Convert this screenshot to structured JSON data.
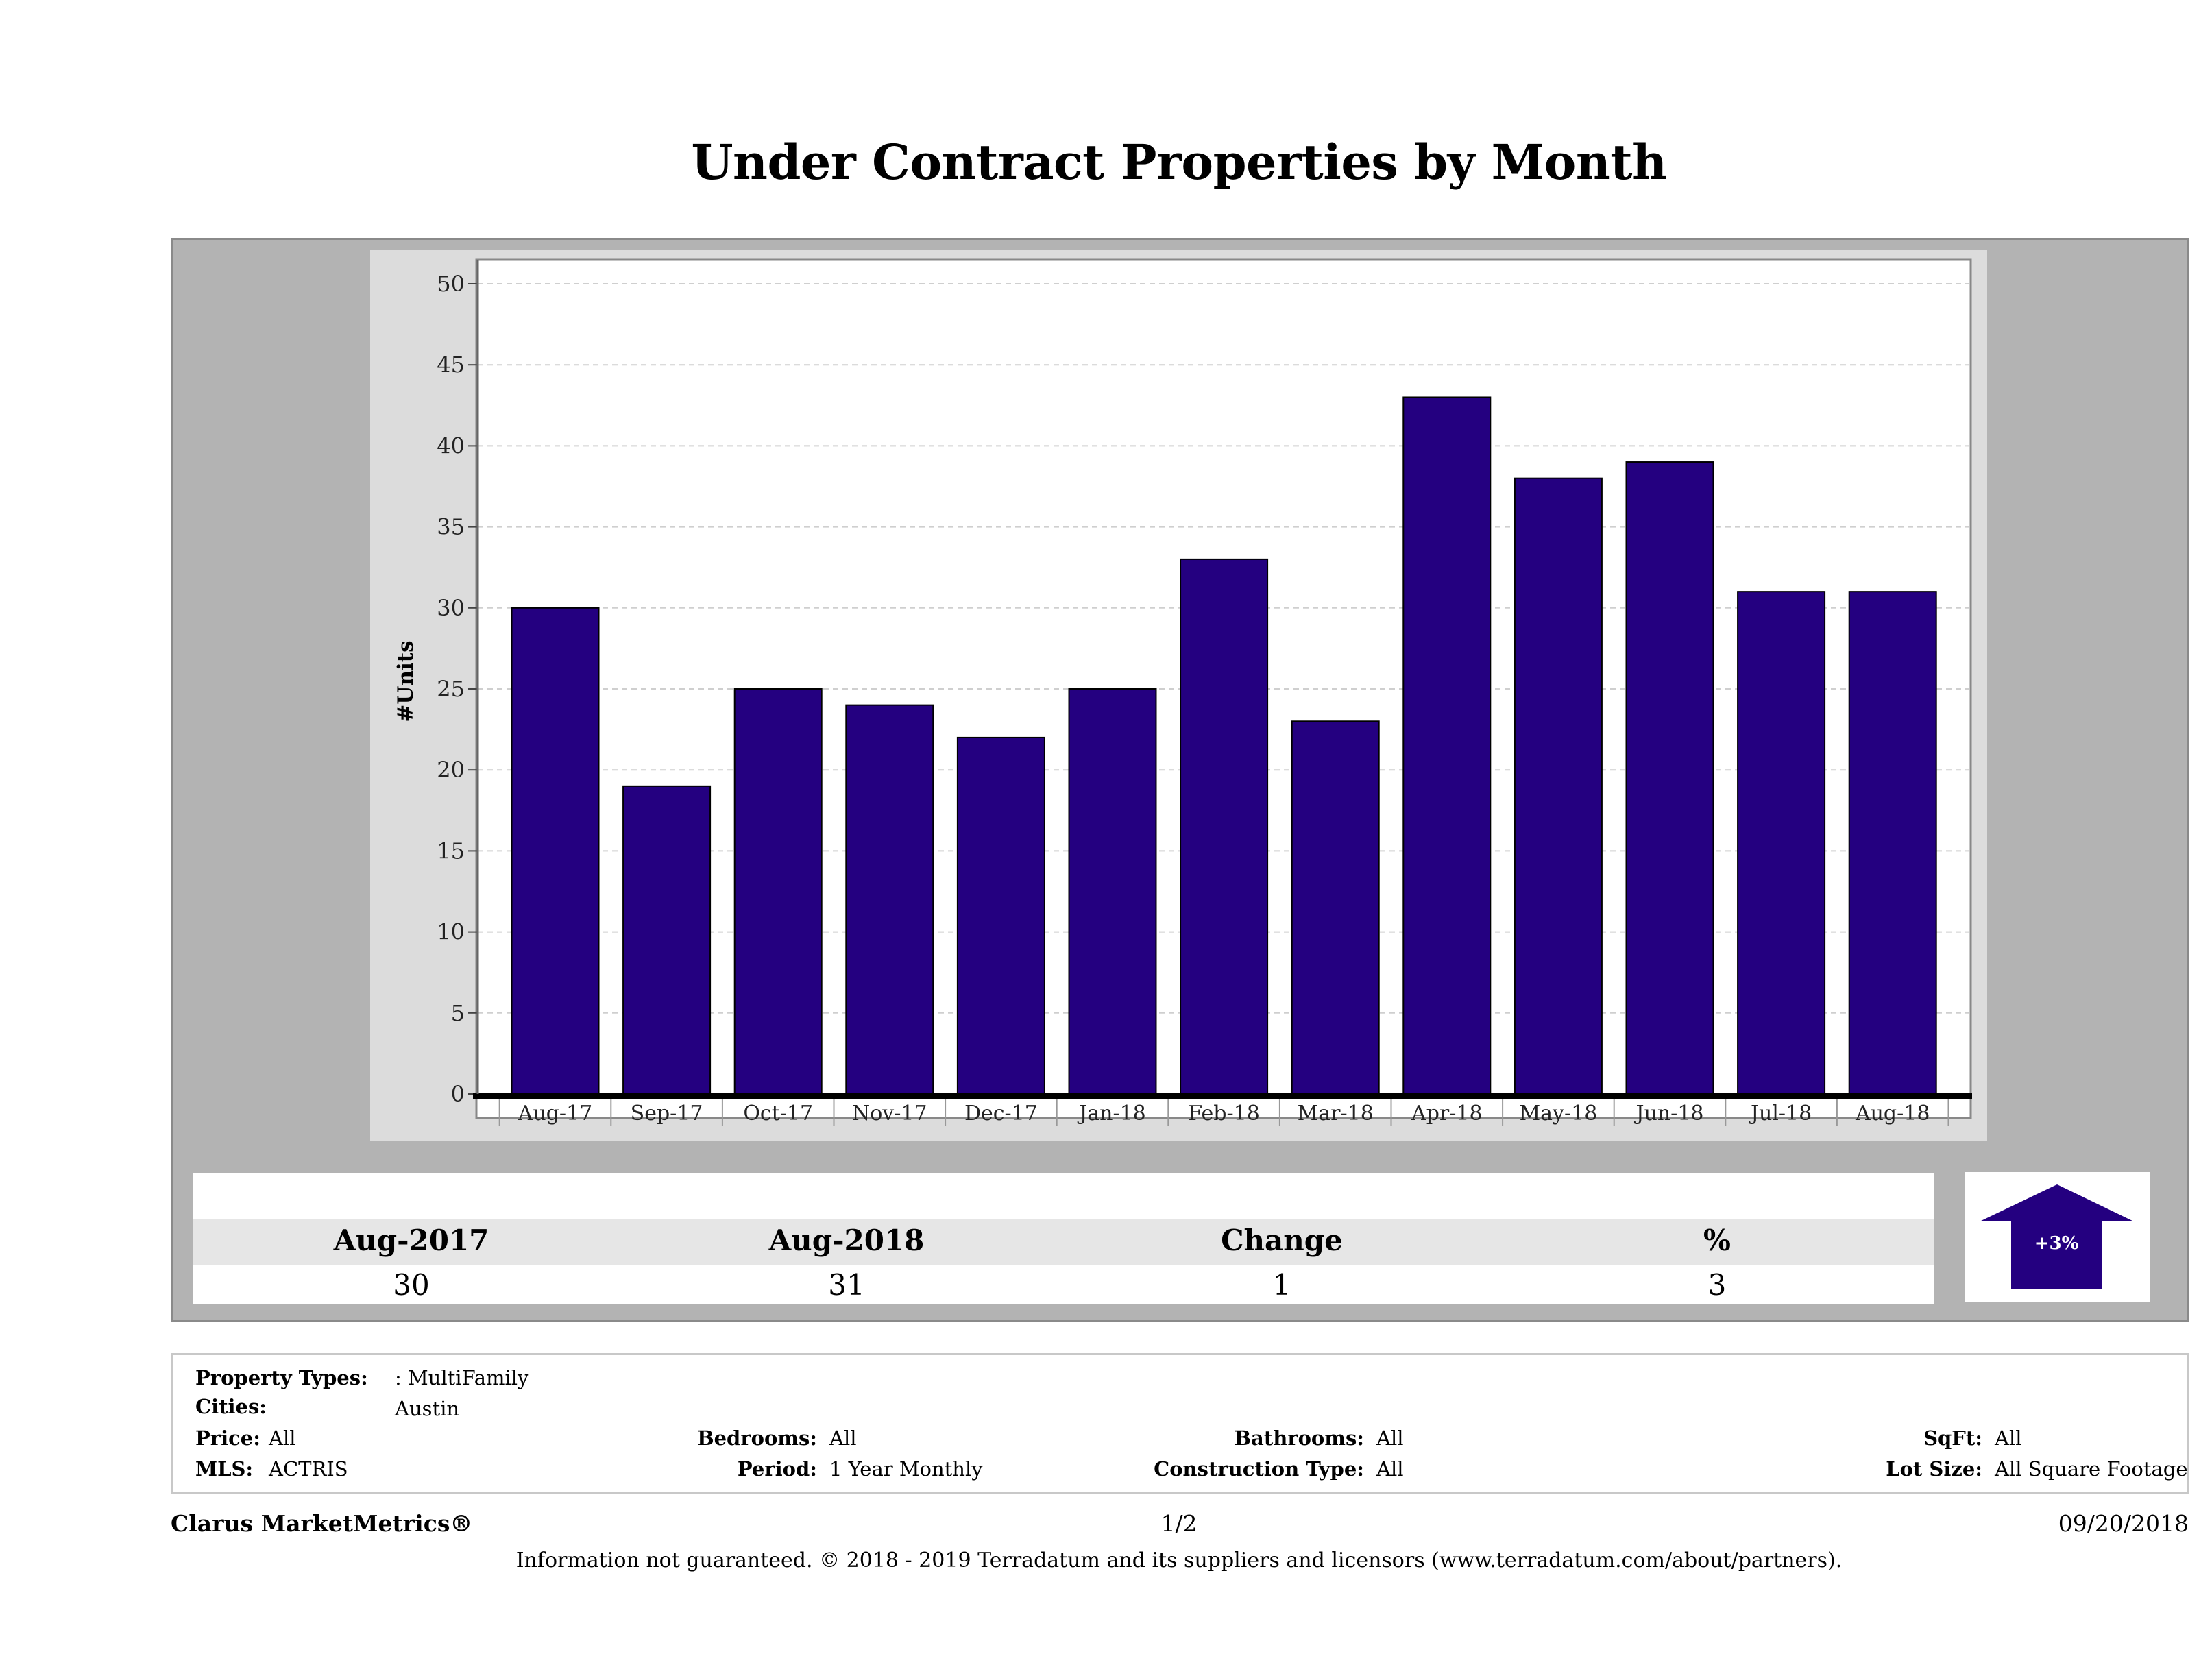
{
  "title": "Under Contract Properties by Month",
  "chart_data": {
    "type": "bar",
    "categories": [
      "Aug-17",
      "Sep-17",
      "Oct-17",
      "Nov-17",
      "Dec-17",
      "Jan-18",
      "Feb-18",
      "Mar-18",
      "Apr-18",
      "May-18",
      "Jun-18",
      "Jul-18",
      "Aug-18"
    ],
    "values": [
      30,
      19,
      25,
      24,
      22,
      25,
      33,
      23,
      43,
      38,
      39,
      31,
      31
    ],
    "ylabel": "#Units",
    "ylim": [
      0,
      50
    ],
    "yticks": [
      0,
      5,
      10,
      15,
      20,
      25,
      30,
      35,
      40,
      45,
      50
    ],
    "grid": true,
    "bar_color": "#240080"
  },
  "summary": {
    "headers": [
      "Aug-2017",
      "Aug-2018",
      "Change",
      "%"
    ],
    "values": [
      "30",
      "31",
      "1",
      "3"
    ],
    "badge": "+3%",
    "badge_color": "#240080"
  },
  "info": {
    "property_types_label": "Property Types:",
    "property_types_value": ": MultiFamily",
    "cities_label": "Cities:",
    "cities_value": "Austin",
    "price_label": "Price:",
    "price_value": "All",
    "mls_label": "MLS:",
    "mls_value": "ACTRIS",
    "bedrooms_label": "Bedrooms:",
    "bedrooms_value": "All",
    "period_label": "Period:",
    "period_value": "1 Year Monthly",
    "bathrooms_label": "Bathrooms:",
    "bathrooms_value": "All",
    "construction_label": "Construction Type:",
    "construction_value": "All",
    "sqft_label": "SqFt:",
    "sqft_value": "All",
    "lotsize_label": "Lot Size:",
    "lotsize_value": "All Square Footage"
  },
  "footer": {
    "brand": "Clarus MarketMetrics®",
    "page": "1/2",
    "date": "09/20/2018",
    "disclaimer": "Information not guaranteed. © 2018 - 2019 Terradatum and its suppliers and licensors (www.terradatum.com/about/partners)."
  }
}
